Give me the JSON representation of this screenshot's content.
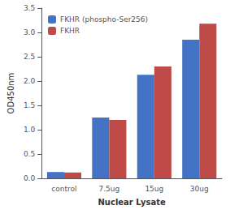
{
  "chart_data": {
    "type": "bar",
    "categories": [
      "control",
      "7.5ug",
      "15ug",
      "30ug"
    ],
    "series": [
      {
        "name": "FKHR (phospho-Ser256)",
        "color": "#4472C4",
        "values": [
          0.13,
          1.25,
          2.13,
          2.85
        ]
      },
      {
        "name": "FKHR",
        "color": "#BE4B48",
        "values": [
          0.12,
          1.2,
          2.3,
          3.18
        ]
      }
    ],
    "xlabel": "Nuclear Lysate",
    "ylabel": "OD450nm",
    "ylim": [
      0,
      3.5
    ],
    "yticks": [
      {
        "value": 0,
        "label": "0.0"
      },
      0.5,
      {
        "value": 1.0,
        "label": "1.0"
      },
      1.5,
      {
        "value": 2.0,
        "label": "2.0"
      },
      2.5,
      {
        "value": 3.0,
        "label": "3.0"
      },
      3.5
    ],
    "legend": "upper left",
    "grid": false
  }
}
